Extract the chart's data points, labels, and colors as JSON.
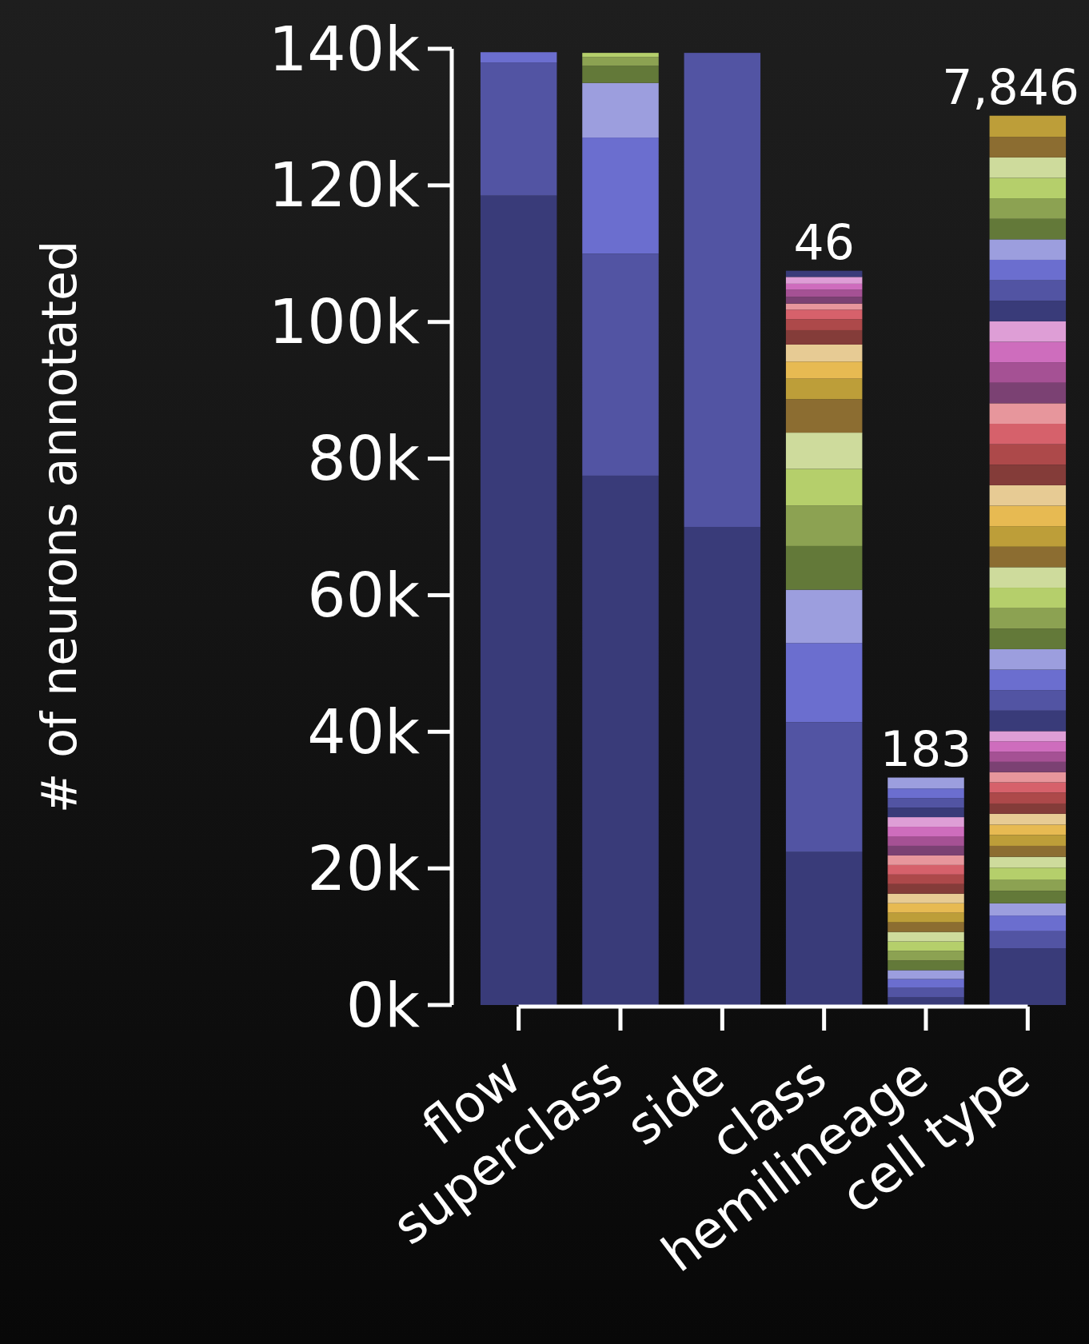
{
  "chart_data": {
    "type": "bar",
    "stacked": true,
    "ylabel": "# of neurons annotated",
    "categories": [
      "flow",
      "superclass",
      "side",
      "class",
      "hemilineage",
      "cell type"
    ],
    "ylim": [
      0,
      140000
    ],
    "yticks": [
      {
        "value": 0,
        "label": "0k"
      },
      {
        "value": 20000,
        "label": "20k"
      },
      {
        "value": 40000,
        "label": "40k"
      },
      {
        "value": 60000,
        "label": "60k"
      },
      {
        "value": 80000,
        "label": "80k"
      },
      {
        "value": 100000,
        "label": "100k"
      },
      {
        "value": 120000,
        "label": "120k"
      },
      {
        "value": 140000,
        "label": "140k"
      }
    ],
    "grid": false,
    "annotations": [
      {
        "text": "46",
        "x": "class",
        "y": 107500
      },
      {
        "text": "183",
        "x": "hemilineage",
        "y": 33300
      },
      {
        "text": "7,846",
        "x": "cell type",
        "y": 130200
      }
    ],
    "series": [
      {
        "color": "#393b79",
        "values": [
          118500,
          77500,
          70000,
          22400,
          1100,
          8300
        ]
      },
      {
        "color": "#5254a3",
        "values": [
          19500,
          32500,
          69400,
          19000,
          1400,
          2500
        ]
      },
      {
        "color": "#6b6ecf",
        "values": [
          1500,
          17000,
          null,
          11600,
          1300,
          2300
        ]
      },
      {
        "color": "#9c9ede",
        "values": [
          null,
          8000,
          null,
          7800,
          1300,
          1800
        ]
      },
      {
        "color": "#637939",
        "values": [
          null,
          2500,
          null,
          6400,
          1400,
          1800
        ]
      },
      {
        "color": "#8ca252",
        "values": [
          null,
          1300,
          null,
          5900,
          1400,
          1600
        ]
      },
      {
        "color": "#b5cf6b",
        "values": [
          null,
          600,
          null,
          5400,
          1400,
          1800
        ]
      },
      {
        "color": "#cedb9c",
        "values": [
          null,
          null,
          null,
          5300,
          1400,
          1600
        ]
      },
      {
        "color": "#8c6d31",
        "values": [
          null,
          null,
          null,
          4900,
          1400,
          1600
        ]
      },
      {
        "color": "#bd9e39",
        "values": [
          null,
          null,
          null,
          3000,
          1400,
          1600
        ]
      },
      {
        "color": "#e7ba52",
        "values": [
          null,
          null,
          null,
          2500,
          1400,
          1500
        ]
      },
      {
        "color": "#e7cb94",
        "values": [
          null,
          null,
          null,
          2500,
          1400,
          1600
        ]
      },
      {
        "color": "#843c39",
        "values": [
          null,
          null,
          null,
          2100,
          1400,
          1500
        ]
      },
      {
        "color": "#ad494a",
        "values": [
          null,
          null,
          null,
          1600,
          1400,
          1600
        ]
      },
      {
        "color": "#d6616b",
        "values": [
          null,
          null,
          null,
          1400,
          1400,
          1500
        ]
      },
      {
        "color": "#e7969c",
        "values": [
          null,
          null,
          null,
          900,
          1400,
          1500
        ]
      },
      {
        "color": "#7b4173",
        "values": [
          null,
          null,
          null,
          1000,
          1400,
          1500
        ]
      },
      {
        "color": "#a55194",
        "values": [
          null,
          null,
          null,
          1000,
          1400,
          1500
        ]
      },
      {
        "color": "#ce6dbd",
        "values": [
          null,
          null,
          null,
          900,
          1400,
          1500
        ]
      },
      {
        "color": "#de9ed6",
        "values": [
          null,
          null,
          null,
          1000,
          1400,
          1500
        ]
      },
      {
        "color": "#393b79",
        "values": [
          null,
          null,
          null,
          900,
          1400,
          3000
        ]
      },
      {
        "color": "#5254a3",
        "values": [
          null,
          null,
          null,
          null,
          1400,
          3000
        ]
      },
      {
        "color": "#6b6ecf",
        "values": [
          null,
          null,
          null,
          null,
          1400,
          3000
        ]
      },
      {
        "color": "#9c9ede",
        "values": [
          null,
          null,
          null,
          null,
          1600,
          3000
        ]
      },
      {
        "color": "#637939",
        "values": [
          null,
          null,
          null,
          null,
          null,
          3000
        ]
      },
      {
        "color": "#8ca252",
        "values": [
          null,
          null,
          null,
          null,
          null,
          3000
        ]
      },
      {
        "color": "#b5cf6b",
        "values": [
          null,
          null,
          null,
          null,
          null,
          3000
        ]
      },
      {
        "color": "#cedb9c",
        "values": [
          null,
          null,
          null,
          null,
          null,
          3000
        ]
      },
      {
        "color": "#8c6d31",
        "values": [
          null,
          null,
          null,
          null,
          null,
          3000
        ]
      },
      {
        "color": "#bd9e39",
        "values": [
          null,
          null,
          null,
          null,
          null,
          3000
        ]
      },
      {
        "color": "#e7ba52",
        "values": [
          null,
          null,
          null,
          null,
          null,
          3000
        ]
      },
      {
        "color": "#e7cb94",
        "values": [
          null,
          null,
          null,
          null,
          null,
          3000
        ]
      },
      {
        "color": "#843c39",
        "values": [
          null,
          null,
          null,
          null,
          null,
          3000
        ]
      },
      {
        "color": "#ad494a",
        "values": [
          null,
          null,
          null,
          null,
          null,
          3000
        ]
      },
      {
        "color": "#d6616b",
        "values": [
          null,
          null,
          null,
          null,
          null,
          3000
        ]
      },
      {
        "color": "#e7969c",
        "values": [
          null,
          null,
          null,
          null,
          null,
          3000
        ]
      },
      {
        "color": "#7b4173",
        "values": [
          null,
          null,
          null,
          null,
          null,
          3000
        ]
      },
      {
        "color": "#a55194",
        "values": [
          null,
          null,
          null,
          null,
          null,
          3000
        ]
      },
      {
        "color": "#ce6dbd",
        "values": [
          null,
          null,
          null,
          null,
          null,
          3000
        ]
      },
      {
        "color": "#de9ed6",
        "values": [
          null,
          null,
          null,
          null,
          null,
          3000
        ]
      },
      {
        "color": "#393b79",
        "values": [
          null,
          null,
          null,
          null,
          null,
          3000
        ]
      },
      {
        "color": "#5254a3",
        "values": [
          null,
          null,
          null,
          null,
          null,
          3000
        ]
      },
      {
        "color": "#6b6ecf",
        "values": [
          null,
          null,
          null,
          null,
          null,
          3000
        ]
      },
      {
        "color": "#9c9ede",
        "values": [
          null,
          null,
          null,
          null,
          null,
          3000
        ]
      },
      {
        "color": "#637939",
        "values": [
          null,
          null,
          null,
          null,
          null,
          3000
        ]
      },
      {
        "color": "#8ca252",
        "values": [
          null,
          null,
          null,
          null,
          null,
          3000
        ]
      },
      {
        "color": "#b5cf6b",
        "values": [
          null,
          null,
          null,
          null,
          null,
          3000
        ]
      },
      {
        "color": "#cedb9c",
        "values": [
          null,
          null,
          null,
          null,
          null,
          3000
        ]
      },
      {
        "color": "#8c6d31",
        "values": [
          null,
          null,
          null,
          null,
          null,
          3000
        ]
      },
      {
        "color": "#bd9e39",
        "values": [
          null,
          null,
          null,
          null,
          null,
          3100
        ]
      }
    ]
  }
}
